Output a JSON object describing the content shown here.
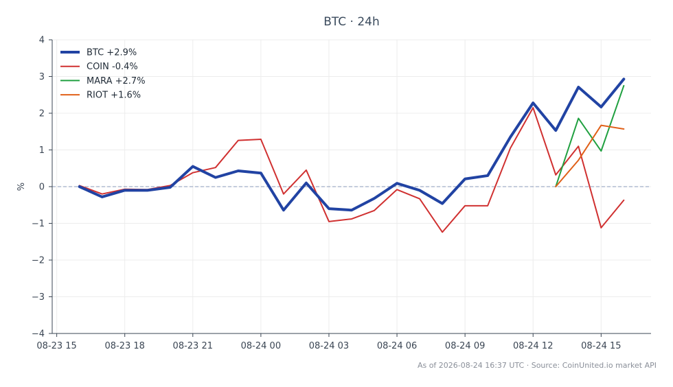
{
  "chart_data": {
    "type": "line",
    "title": "BTC · 24h",
    "xlabel": "",
    "ylabel": "%",
    "ylim": [
      -4,
      4
    ],
    "y_ticks": [
      -4,
      -3,
      -2,
      -1,
      0,
      1,
      2,
      3,
      4
    ],
    "y_tick_labels": [
      "−4",
      "−3",
      "−2",
      "−1",
      "0",
      "1",
      "2",
      "3",
      "4"
    ],
    "x_tick_labels": [
      "08-23 15",
      "08-23 18",
      "08-23 21",
      "08-24 00",
      "08-24 03",
      "08-24 06",
      "08-24 09",
      "08-24 12",
      "08-24 15"
    ],
    "x_ticks": [
      -1,
      2,
      5,
      8,
      11,
      14,
      17,
      20,
      23
    ],
    "xlim": [
      -1.2,
      25.2
    ],
    "grid": true,
    "zero_line": true,
    "legend_position": "top-left",
    "series": [
      {
        "name": "BTC +2.9%",
        "color": "#2143a3",
        "width": 4,
        "start": 0,
        "values": [
          0.0,
          -0.28,
          -0.1,
          -0.1,
          -0.02,
          0.55,
          0.25,
          0.43,
          0.37,
          -0.64,
          0.1,
          -0.6,
          -0.64,
          -0.32,
          0.09,
          -0.1,
          -0.46,
          0.21,
          0.3,
          1.35,
          2.28,
          1.53,
          2.71,
          2.17,
          2.93
        ]
      },
      {
        "name": "COIN -0.4%",
        "color": "#d03030",
        "width": 2,
        "start": 0,
        "values": [
          0.03,
          -0.2,
          -0.07,
          -0.08,
          0.03,
          0.38,
          0.52,
          1.26,
          1.29,
          -0.2,
          0.45,
          -0.95,
          -0.88,
          -0.65,
          -0.08,
          -0.33,
          -1.24,
          -0.52,
          -0.52,
          1.05,
          2.15,
          0.32,
          1.1,
          -1.12,
          -0.37
        ]
      },
      {
        "name": "MARA +2.7%",
        "color": "#20a040",
        "width": 2,
        "start": 21,
        "values": [
          0.0,
          1.86,
          0.97,
          2.75
        ]
      },
      {
        "name": "RIOT +1.6%",
        "color": "#e06018",
        "width": 2,
        "start": 21,
        "values": [
          0.0,
          0.72,
          1.67,
          1.57
        ]
      }
    ]
  },
  "footer": {
    "text": "As of 2026-08-24 16:37 UTC · Source: CoinUnited.io market API"
  }
}
